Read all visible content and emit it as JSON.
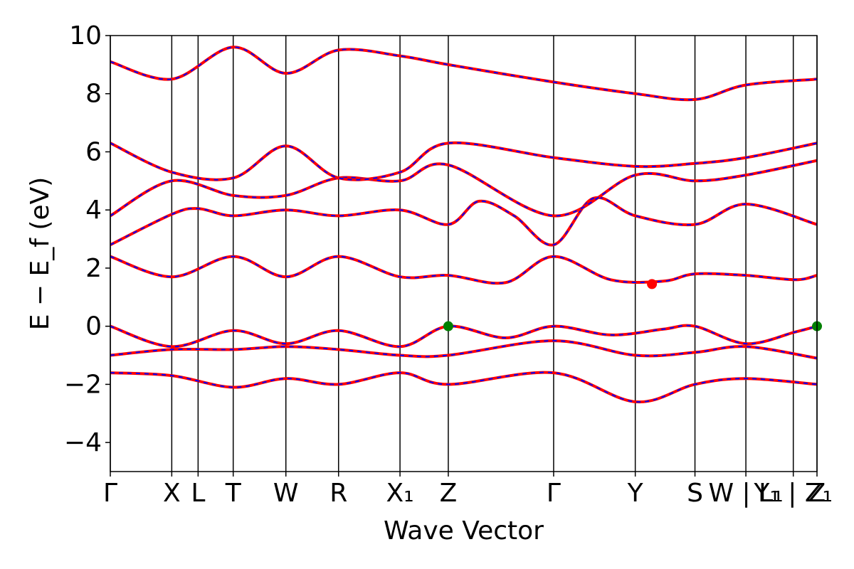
{
  "chart_data": {
    "type": "line",
    "xlabel": "Wave Vector",
    "ylabel": "E − E_f (eV)",
    "ylim": [
      -5,
      10
    ],
    "yticks": [
      -4,
      -2,
      0,
      2,
      4,
      6,
      8,
      10
    ],
    "ytick_labels": [
      "−4",
      "−2",
      "0",
      "2",
      "4",
      "6",
      "8",
      "10"
    ],
    "kpoints": [
      {
        "label": "Γ",
        "x": 0.0
      },
      {
        "label": "X",
        "x": 0.7
      },
      {
        "label": "L",
        "x": 1.0
      },
      {
        "label": "T",
        "x": 1.4
      },
      {
        "label": "W",
        "x": 2.0
      },
      {
        "label": "R",
        "x": 2.6
      },
      {
        "label": "X₁",
        "x": 3.3
      },
      {
        "label": "Z",
        "x": 3.85
      },
      {
        "label": "Γ",
        "x": 5.05
      },
      {
        "label": "Y",
        "x": 5.98
      },
      {
        "label": "S",
        "x": 6.66
      },
      {
        "label": "W | L₁",
        "x": 7.24
      },
      {
        "label": "Y₁ | Z₁",
        "x": 7.78
      },
      {
        "label": "Z",
        "x": 8.05
      }
    ],
    "series": [
      {
        "color": "#ff0000",
        "dash": "solid",
        "width": 4
      },
      {
        "color": "#0000ff",
        "dash": "dashed",
        "width": 2
      }
    ],
    "bands_sample": [
      {
        "x": [
          0.0,
          0.7,
          1.4,
          2.0,
          2.6,
          3.3,
          3.85,
          4.5,
          5.05,
          5.7,
          6.3,
          6.66,
          7.24,
          7.8,
          8.05
        ],
        "y": [
          0.0,
          -0.7,
          -0.15,
          -0.6,
          -0.15,
          -0.7,
          0.0,
          -0.4,
          0.0,
          -0.3,
          -0.1,
          0.0,
          -0.6,
          -0.2,
          0.0
        ]
      },
      {
        "x": [
          0.0,
          0.7,
          1.4,
          2.0,
          2.6,
          3.3,
          3.85,
          4.5,
          5.05,
          5.7,
          6.3,
          6.66,
          7.24,
          7.8,
          8.05
        ],
        "y": [
          2.4,
          1.7,
          2.4,
          1.7,
          2.4,
          1.7,
          1.75,
          1.5,
          2.4,
          1.6,
          1.55,
          1.8,
          1.75,
          1.6,
          1.75
        ]
      },
      {
        "x": [
          0.0,
          0.7,
          1.0,
          1.4,
          2.0,
          2.6,
          3.3,
          3.85,
          4.2,
          4.6,
          5.05,
          5.5,
          5.98,
          6.66,
          7.24,
          8.05
        ],
        "y": [
          2.8,
          3.85,
          4.05,
          3.8,
          4.0,
          3.8,
          4.0,
          3.5,
          4.3,
          3.8,
          2.8,
          4.4,
          3.8,
          3.5,
          4.2,
          3.5
        ]
      },
      {
        "x": [
          0.0,
          0.7,
          1.4,
          2.0,
          2.6,
          3.3,
          3.85,
          5.05,
          5.98,
          6.66,
          7.24,
          8.05
        ],
        "y": [
          3.8,
          5.0,
          4.5,
          4.5,
          5.1,
          5.0,
          5.55,
          3.8,
          5.2,
          5.0,
          5.2,
          5.7
        ]
      },
      {
        "x": [
          0.0,
          0.7,
          1.4,
          2.0,
          2.6,
          3.3,
          3.85,
          5.05,
          5.98,
          6.66,
          7.24,
          8.05
        ],
        "y": [
          -1.0,
          -0.8,
          -0.8,
          -0.7,
          -0.8,
          -1.0,
          -1.0,
          -0.5,
          -1.0,
          -0.9,
          -0.7,
          -1.1
        ]
      },
      {
        "x": [
          0.0,
          0.7,
          1.4,
          2.0,
          2.6,
          3.3,
          3.85,
          5.05,
          5.98,
          6.66,
          7.24,
          8.05
        ],
        "y": [
          -1.6,
          -1.7,
          -2.1,
          -1.8,
          -2.0,
          -1.6,
          -2.0,
          -1.6,
          -2.6,
          -2.0,
          -1.8,
          -2.0
        ]
      },
      {
        "x": [
          0.0,
          0.7,
          1.4,
          2.0,
          2.6,
          3.3,
          3.85,
          5.05,
          5.98,
          6.66,
          7.24,
          8.05
        ],
        "y": [
          6.3,
          5.3,
          5.1,
          6.2,
          5.1,
          5.3,
          6.3,
          5.8,
          5.5,
          5.6,
          5.8,
          6.3
        ]
      },
      {
        "x": [
          0.0,
          0.7,
          1.4,
          2.0,
          2.6,
          3.3,
          3.85,
          5.05,
          5.98,
          6.66,
          7.24,
          8.05
        ],
        "y": [
          9.1,
          8.5,
          9.6,
          8.7,
          9.5,
          9.3,
          9.0,
          8.4,
          8.0,
          7.8,
          8.3,
          8.5
        ]
      }
    ],
    "markers": [
      {
        "x": 3.85,
        "y": 0.0,
        "color": "#008000"
      },
      {
        "x": 8.05,
        "y": 0.0,
        "color": "#008000"
      },
      {
        "x": 6.17,
        "y": 1.45,
        "color": "#ff0000"
      }
    ]
  }
}
